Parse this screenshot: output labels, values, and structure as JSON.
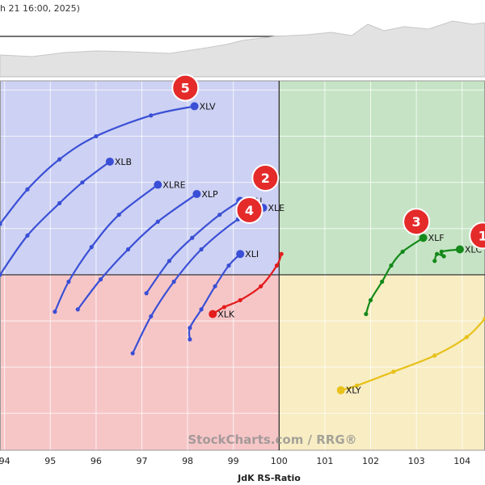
{
  "header": {
    "date_text": "h 21 16:00, 2025)"
  },
  "watermark": {
    "text": "StockCharts.com / RRG®"
  },
  "chart_data": {
    "type": "scatter",
    "title": "",
    "xlabel": "JdK RS-Ratio",
    "ylabel": "",
    "xlim": [
      93.9,
      104.5
    ],
    "ylim": [
      96.2,
      104.2
    ],
    "grid": true,
    "x_ticks": [
      94,
      95,
      96,
      97,
      98,
      99,
      100,
      101,
      102,
      103,
      104
    ],
    "quadrants": {
      "top_left": "#cdd1f3",
      "top_right": "#c6e4c5",
      "bottom_left": "#f6c6c7",
      "bottom_right": "#f8edc3"
    },
    "series": [
      {
        "name": "XLV",
        "color": "#3a4fd6",
        "points": [
          [
            93.9,
            101.1
          ],
          [
            94.5,
            101.85
          ],
          [
            95.2,
            102.5
          ],
          [
            96.0,
            103.0
          ],
          [
            97.2,
            103.45
          ],
          [
            98.15,
            103.65
          ]
        ]
      },
      {
        "name": "XLB",
        "color": "#3a4fd6",
        "points": [
          [
            93.9,
            100.0
          ],
          [
            94.5,
            100.85
          ],
          [
            95.2,
            101.55
          ],
          [
            95.7,
            102.0
          ],
          [
            96.3,
            102.45
          ]
        ]
      },
      {
        "name": "XLRE",
        "color": "#3a4fd6",
        "points": [
          [
            95.1,
            99.2
          ],
          [
            95.4,
            99.85
          ],
          [
            95.9,
            100.6
          ],
          [
            96.5,
            101.3
          ],
          [
            97.35,
            101.95
          ]
        ]
      },
      {
        "name": "XLP",
        "color": "#3a4fd6",
        "points": [
          [
            95.6,
            99.25
          ],
          [
            96.1,
            99.9
          ],
          [
            96.7,
            100.55
          ],
          [
            97.35,
            101.15
          ],
          [
            98.2,
            101.75
          ]
        ]
      },
      {
        "name": "XLE",
        "color": "#3a4fd6",
        "points": [
          [
            96.8,
            98.3
          ],
          [
            97.2,
            99.1
          ],
          [
            97.7,
            99.85
          ],
          [
            98.3,
            100.55
          ],
          [
            99.1,
            101.2
          ],
          [
            99.65,
            101.45
          ]
        ]
      },
      {
        "name": "XLU",
        "color": "#3a4fd6",
        "points": [
          [
            97.1,
            99.6
          ],
          [
            97.6,
            100.3
          ],
          [
            98.1,
            100.8
          ],
          [
            98.7,
            101.3
          ],
          [
            99.15,
            101.6
          ]
        ]
      },
      {
        "name": "XLI",
        "color": "#3a4fd6",
        "points": [
          [
            98.05,
            98.6
          ],
          [
            98.05,
            98.85
          ],
          [
            98.3,
            99.25
          ],
          [
            98.6,
            99.75
          ],
          [
            98.9,
            100.2
          ],
          [
            99.15,
            100.45
          ]
        ]
      },
      {
        "name": "XLK",
        "color": "#e31c1c",
        "points": [
          [
            100.05,
            100.45
          ],
          [
            99.95,
            100.2
          ],
          [
            99.6,
            99.75
          ],
          [
            99.15,
            99.45
          ],
          [
            98.8,
            99.3
          ],
          [
            98.55,
            99.15
          ]
        ]
      },
      {
        "name": "XLF",
        "color": "#15891a",
        "points": [
          [
            101.9,
            99.15
          ],
          [
            102.0,
            99.45
          ],
          [
            102.25,
            99.85
          ],
          [
            102.45,
            100.2
          ],
          [
            102.7,
            100.5
          ],
          [
            103.15,
            100.8
          ]
        ]
      },
      {
        "name": "XLC",
        "color": "#15891a",
        "points": [
          [
            103.4,
            100.3
          ],
          [
            103.45,
            100.45
          ],
          [
            103.6,
            100.4
          ],
          [
            103.55,
            100.5
          ],
          [
            103.95,
            100.55
          ]
        ]
      },
      {
        "name": "XLY",
        "color": "#e8c11a",
        "points": [
          [
            104.5,
            99.05
          ],
          [
            104.1,
            98.65
          ],
          [
            103.4,
            98.25
          ],
          [
            102.5,
            97.9
          ],
          [
            101.7,
            97.6
          ],
          [
            101.35,
            97.5
          ]
        ]
      }
    ],
    "badges": [
      {
        "n": "5",
        "x": 97.95,
        "y": 104.05
      },
      {
        "n": "2",
        "x": 99.7,
        "y": 102.1
      },
      {
        "n": "4",
        "x": 99.35,
        "y": 101.4
      },
      {
        "n": "3",
        "x": 103.0,
        "y": 101.15
      },
      {
        "n": "1",
        "x": 104.45,
        "y": 100.85
      }
    ]
  }
}
